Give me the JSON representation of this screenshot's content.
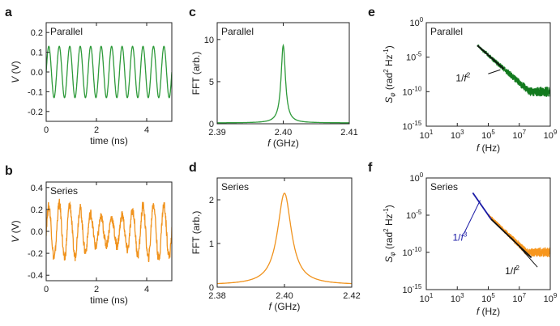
{
  "chart_data": [
    {
      "panel": "a",
      "type": "line",
      "inset_label": "Parallel",
      "xlabel": "time (ns)",
      "ylabel": "V (V)",
      "xlim": [
        0,
        5
      ],
      "ylim": [
        -0.25,
        0.25
      ],
      "xticks": [
        0,
        2,
        4
      ],
      "xtick_labels": [
        "0",
        "2",
        "4"
      ],
      "yticks": [
        0.2,
        0.1,
        0.0,
        -0.1,
        -0.2
      ],
      "ytick_labels": [
        "0.2",
        "0.1",
        "0.0",
        "-0.1",
        "-0.2"
      ],
      "series": [
        {
          "color": "#2e9a3a",
          "signal": {
            "shape": "sine",
            "frequency_ghz": 2.4,
            "amplitude": 0.13,
            "offset": 0.0
          }
        }
      ]
    },
    {
      "panel": "b",
      "type": "line",
      "inset_label": "Series",
      "xlabel": "time (ns)",
      "ylabel": "V (V)",
      "xlim": [
        0,
        5
      ],
      "ylim": [
        -0.45,
        0.45
      ],
      "xticks": [
        0,
        2,
        4
      ],
      "xtick_labels": [
        "0",
        "2",
        "4"
      ],
      "yticks": [
        0.4,
        0.2,
        0.0,
        -0.2,
        -0.4
      ],
      "ytick_labels": [
        "0.4",
        "0.2",
        "0.0",
        "-0.2",
        "-0.4"
      ],
      "series": [
        {
          "color": "#f0931e",
          "signal": {
            "shape": "noisy sine",
            "frequency_ghz": 2.4,
            "amplitude": 0.22,
            "offset": 0.0
          }
        }
      ]
    },
    {
      "panel": "c",
      "type": "line",
      "inset_label": "Parallel",
      "xlabel": "f (GHz)",
      "ylabel": "FFT (arb.)",
      "xlim": [
        2.39,
        2.41
      ],
      "ylim": [
        0,
        12
      ],
      "xticks": [
        2.39,
        2.4,
        2.41
      ],
      "xtick_labels": [
        "2.39",
        "2.40",
        "2.41"
      ],
      "yticks": [
        10,
        5,
        0
      ],
      "ytick_labels": [
        "10",
        "5",
        "0"
      ],
      "series": [
        {
          "color": "#2e9a3a",
          "peak": {
            "center_ghz": 2.4,
            "height": 9.2,
            "width_ghz": 0.0004,
            "baseline": 0.1
          }
        }
      ]
    },
    {
      "panel": "d",
      "type": "line",
      "inset_label": "Series",
      "xlabel": "f (GHz)",
      "ylabel": "FFT (arb.)",
      "xlim": [
        2.38,
        2.42
      ],
      "ylim": [
        0,
        2.5
      ],
      "xticks": [
        2.38,
        2.4,
        2.42
      ],
      "xtick_labels": [
        "2.38",
        "2.40",
        "2.42"
      ],
      "yticks": [
        2,
        1,
        0
      ],
      "ytick_labels": [
        "2",
        "1",
        "0"
      ],
      "series": [
        {
          "color": "#f0931e",
          "peak": {
            "center_ghz": 2.4,
            "height": 2.1,
            "width_ghz": 0.0025,
            "baseline": 0.05
          }
        }
      ]
    },
    {
      "panel": "e",
      "type": "line",
      "inset_label": "Parallel",
      "xlabel": "f (Hz)",
      "ylabel": "Sφ (rad² Hz⁻¹)",
      "xscale": "log",
      "yscale": "log",
      "xlim": [
        10,
        1000000000.0
      ],
      "ylim": [
        1e-15,
        1
      ],
      "xticks": [
        10,
        1000,
        100000,
        10000000,
        1000000000
      ],
      "xtick_labels": [
        [
          "10",
          "1"
        ],
        [
          "10",
          "3"
        ],
        [
          "10",
          "5"
        ],
        [
          "10",
          "7"
        ],
        [
          "10",
          "9"
        ]
      ],
      "yticks": [
        1,
        1e-05,
        1e-10,
        1e-15
      ],
      "ytick_labels": [
        [
          "10",
          "0"
        ],
        [
          "10",
          "-5"
        ],
        [
          "10",
          "-10"
        ],
        [
          "10",
          "-15"
        ]
      ],
      "series": [
        {
          "color": "#127a1e",
          "spectrum": {
            "f_start": 20000,
            "f_end": 900000000,
            "value_at_start": 0.0005,
            "slope": -2,
            "floor": 1e-10,
            "noise_decades": 0.8
          }
        }
      ],
      "fit_lines": [
        {
          "label": "1/f2",
          "label_base": "1/f",
          "label_exp": "2",
          "color": "#111111",
          "points": [
            [
              20000,
              0.0005
            ],
            [
              1000000,
              2e-07
            ]
          ]
        }
      ]
    },
    {
      "panel": "f",
      "type": "line",
      "inset_label": "Series",
      "xlabel": "f (Hz)",
      "ylabel": "Sφ (rad² Hz⁻¹)",
      "xscale": "log",
      "yscale": "log",
      "xlim": [
        10,
        1000000000.0
      ],
      "ylim": [
        1e-15,
        1
      ],
      "xticks": [
        10,
        1000,
        100000,
        10000000,
        1000000000
      ],
      "xtick_labels": [
        [
          "10",
          "1"
        ],
        [
          "10",
          "3"
        ],
        [
          "10",
          "5"
        ],
        [
          "10",
          "7"
        ],
        [
          "10",
          "9"
        ]
      ],
      "yticks": [
        1,
        1e-05,
        1e-10,
        1e-15
      ],
      "ytick_labels": [
        [
          "10",
          "0"
        ],
        [
          "10",
          "-5"
        ],
        [
          "10",
          "-10"
        ],
        [
          "10",
          "-15"
        ]
      ],
      "series": [
        {
          "color": "#f7961d",
          "spectrum": {
            "f_start": 100000,
            "f_end": 900000000,
            "value_at_start": 1e-05,
            "slope": -2,
            "floor": 1e-10,
            "noise_decades": 0.7
          }
        }
      ],
      "fit_lines": [
        {
          "label": "1/f3",
          "label_base": "1/f",
          "label_exp": "3",
          "color": "#1a1aa6",
          "points": [
            [
              10000,
              0.01
            ],
            [
              150000,
              3e-06
            ]
          ]
        },
        {
          "label": "1/f2",
          "label_base": "1/f",
          "label_exp": "2",
          "color": "#111111",
          "points": [
            [
              150000,
              3e-06
            ],
            [
              60000000,
              2e-11
            ]
          ]
        }
      ]
    }
  ]
}
